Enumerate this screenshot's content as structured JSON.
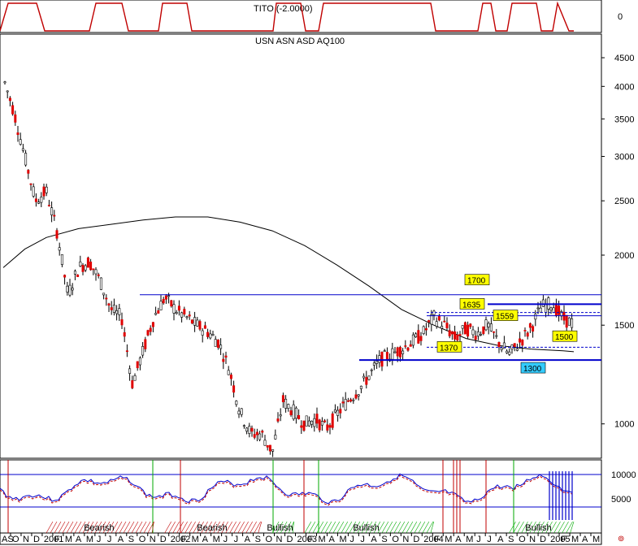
{
  "chart_data": {
    "type": "candlestick",
    "indicator_top": {
      "title": "TITO (-2.0000)",
      "tick": "0"
    },
    "title": "USN ASN ASD AQ100",
    "y_axis": {
      "scale": "log",
      "ylim": [
        880,
        4700
      ],
      "ticks": [
        "4500",
        "4000",
        "3500",
        "3000",
        "2500",
        "2000",
        "1500",
        "1000"
      ]
    },
    "x_axis": {
      "labels": [
        "AS",
        "O",
        "N",
        "D",
        "2001",
        "F",
        "M",
        "A",
        "M",
        "J",
        "J",
        "A",
        "S",
        "O",
        "N",
        "D",
        "2002",
        "F",
        "M",
        "A",
        "M",
        "J",
        "J",
        "A",
        "S",
        "O",
        "N",
        "D",
        "2003",
        "F",
        "M",
        "A",
        "M",
        "J",
        "J",
        "A",
        "S",
        "O",
        "N",
        "D",
        "2004",
        "F",
        "M",
        "A",
        "M",
        "J",
        "J",
        "A",
        "S",
        "O",
        "N",
        "D",
        "2005",
        "F",
        "M",
        "A",
        "M"
      ]
    },
    "price_series": [
      [
        "2000-09",
        4150
      ],
      [
        "2000-10",
        3600
      ],
      [
        "2000-11",
        3000
      ],
      [
        "2000-12",
        2500
      ],
      [
        "2001-01",
        2600
      ],
      [
        "2001-02",
        2200
      ],
      [
        "2001-03",
        1700
      ],
      [
        "2001-04",
        1900
      ],
      [
        "2001-05",
        1950
      ],
      [
        "2001-06",
        1800
      ],
      [
        "2001-07",
        1600
      ],
      [
        "2001-08",
        1550
      ],
      [
        "2001-09",
        1180
      ],
      [
        "2001-10",
        1350
      ],
      [
        "2001-11",
        1550
      ],
      [
        "2001-12",
        1680
      ],
      [
        "2002-01",
        1600
      ],
      [
        "2002-02",
        1550
      ],
      [
        "2002-03",
        1500
      ],
      [
        "2002-04",
        1460
      ],
      [
        "2002-05",
        1400
      ],
      [
        "2002-06",
        1250
      ],
      [
        "2002-07",
        1050
      ],
      [
        "2002-08",
        960
      ],
      [
        "2002-09",
        960
      ],
      [
        "2002-10",
        890
      ],
      [
        "2002-11",
        1100
      ],
      [
        "2002-12",
        1050
      ],
      [
        "2003-01",
        1000
      ],
      [
        "2003-02",
        1020
      ],
      [
        "2003-03",
        980
      ],
      [
        "2003-04",
        1040
      ],
      [
        "2003-05",
        1100
      ],
      [
        "2003-06",
        1150
      ],
      [
        "2003-07",
        1220
      ],
      [
        "2003-08",
        1300
      ],
      [
        "2003-09",
        1330
      ],
      [
        "2003-10",
        1360
      ],
      [
        "2003-11",
        1400
      ],
      [
        "2003-12",
        1450
      ],
      [
        "2004-01",
        1550
      ],
      [
        "2004-02",
        1500
      ],
      [
        "2004-03",
        1420
      ],
      [
        "2004-04",
        1480
      ],
      [
        "2004-05",
        1450
      ],
      [
        "2004-06",
        1500
      ],
      [
        "2004-07",
        1400
      ],
      [
        "2004-08",
        1330
      ],
      [
        "2004-09",
        1400
      ],
      [
        "2004-10",
        1480
      ],
      [
        "2004-11",
        1620
      ],
      [
        "2004-12",
        1640
      ],
      [
        "2005-01",
        1540
      ],
      [
        "2005-02",
        1510
      ]
    ],
    "moving_average": [
      [
        "2000-09",
        1900
      ],
      [
        "2000-11",
        2050
      ],
      [
        "2001-01",
        2150
      ],
      [
        "2001-04",
        2230
      ],
      [
        "2001-07",
        2270
      ],
      [
        "2001-10",
        2310
      ],
      [
        "2002-01",
        2340
      ],
      [
        "2002-04",
        2340
      ],
      [
        "2002-07",
        2290
      ],
      [
        "2002-10",
        2210
      ],
      [
        "2003-01",
        2080
      ],
      [
        "2003-04",
        1920
      ],
      [
        "2003-07",
        1760
      ],
      [
        "2003-10",
        1600
      ],
      [
        "2004-01",
        1500
      ],
      [
        "2004-04",
        1420
      ],
      [
        "2004-07",
        1380
      ],
      [
        "2004-10",
        1360
      ],
      [
        "2005-01",
        1350
      ],
      [
        "2005-02",
        1345
      ]
    ],
    "levels": [
      {
        "value": 1700,
        "label": "1700",
        "style": "solid"
      },
      {
        "value": 1635,
        "label": "1635",
        "style": "solid"
      },
      {
        "value": 1580,
        "label": "",
        "style": "dashed"
      },
      {
        "value": 1559,
        "label": "1559",
        "style": "solid"
      },
      {
        "value": 1500,
        "label": "1500",
        "style": "none"
      },
      {
        "value": 1370,
        "label": "1370",
        "style": "dashed"
      },
      {
        "value": 1300,
        "label": "1300",
        "style": "solid"
      }
    ],
    "oscillator": {
      "ticks": [
        "10000",
        "5000"
      ],
      "regimes": [
        {
          "label": "Bearish",
          "from": "2001-01",
          "to": "2001-11"
        },
        {
          "label": "Bearish",
          "from": "2001-12",
          "to": "2002-09"
        },
        {
          "label": "Bullish",
          "from": "2002-10",
          "to": "2002-12"
        },
        {
          "label": "Bullish",
          "from": "2003-01",
          "to": "2004-01"
        },
        {
          "label": "Bullish",
          "from": "2004-08",
          "to": "2005-02"
        }
      ]
    }
  }
}
